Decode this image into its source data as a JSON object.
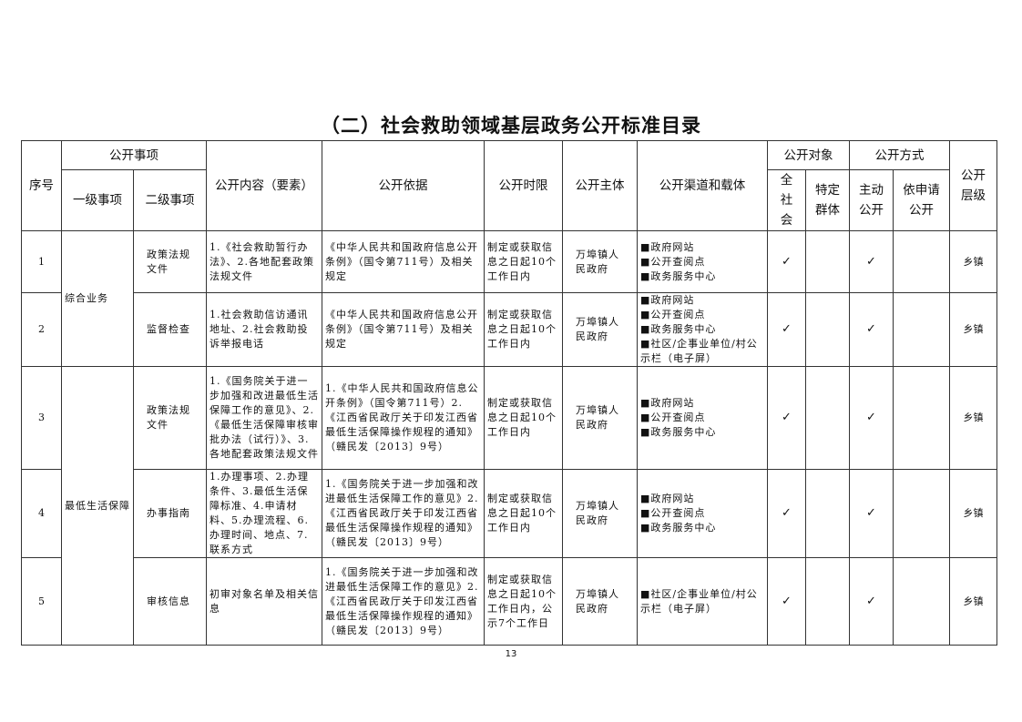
{
  "title": "（二）社会救助领域基层政务公开标准目录",
  "headers": {
    "seq": "序号",
    "matter": "公开事项",
    "level1": "一级事项",
    "level2": "二级事项",
    "content": "公开内容（要素）",
    "basis": "公开依据",
    "time": "公开时限",
    "subject": "公开主体",
    "channel": "公开渠道和载体",
    "target": "公开对象",
    "target_all": "全社会",
    "target_specific": "特定群体",
    "method": "公开方式",
    "method_active": "主动公开",
    "method_request": "依申请公开",
    "level": "公开层级"
  },
  "check_mark": "✓",
  "groups": [
    "综合业务",
    "最低生活保障"
  ],
  "rows": [
    {
      "seq": "1",
      "level2": "政策法规文件",
      "content": "1.《社会救助暂行办法》、2.各地配套政策法规文件",
      "basis": "《中华人民共和国政府信息公开条例》（国令第711号）及相关规定",
      "time": "制定或获取信息之日起10个工作日内",
      "subject": "万埠镇人民政府",
      "channels": [
        "■政府网站",
        "■公开查阅点",
        "■政务服务中心"
      ],
      "level": "乡镇"
    },
    {
      "seq": "2",
      "level2": "监督检查",
      "content": "1.社会救助信访通讯地址、2.社会救助投诉举报电话",
      "basis": "《中华人民共和国政府信息公开条例》（国令第711号）及相关规定",
      "time": "制定或获取信息之日起10个工作日内",
      "subject": "万埠镇人民政府",
      "channels": [
        "■政府网站",
        "■公开查阅点",
        "■政务服务中心",
        "■社区/企事业单位/村公示栏（电子屏）"
      ],
      "level": "乡镇"
    },
    {
      "seq": "3",
      "level2": "政策法规文件",
      "content": "1.《国务院关于进一步加强和改进最低生活保障工作的意见》、2.《最低生活保障审核审批办法（试行）》、3.各地配套政策法规文件",
      "basis": "1.《中华人民共和国政府信息公开条例》（国令第711号）2.《江西省民政厅关于印发江西省最低生活保障操作规程的通知》（赣民发〔2013〕9号）",
      "time": "制定或获取信息之日起10个工作日内",
      "subject": "万埠镇人民政府",
      "channels": [
        "■政府网站",
        "■公开查阅点",
        "■政务服务中心"
      ],
      "level": "乡镇"
    },
    {
      "seq": "4",
      "level2": "办事指南",
      "content": "1.办理事项、2.办理条件、3.最低生活保障标准、4.申请材料、5.办理流程、6.办理时间、地点、7.联系方式",
      "basis": "1.《国务院关于进一步加强和改进最低生活保障工作的意见》2.《江西省民政厅关于印发江西省最低生活保障操作规程的通知》（赣民发〔2013〕9号）",
      "time": "制定或获取信息之日起10个工作日内",
      "subject": "万埠镇人民政府",
      "channels": [
        "■政府网站",
        "■公开查阅点",
        "■政务服务中心"
      ],
      "level": "乡镇"
    },
    {
      "seq": "5",
      "level2": "审核信息",
      "content": "初审对象名单及相关信息",
      "basis": "1.《国务院关于进一步加强和改进最低生活保障工作的意见》2.《江西省民政厅关于印发江西省最低生活保障操作规程的通知》（赣民发〔2013〕9号）",
      "time": "制定或获取信息之日起10个工作日内，公示7个工作日",
      "subject": "万埠镇人民政府",
      "channels": [
        "■社区/企事业单位/村公示栏（电子屏）"
      ],
      "level": "乡镇"
    }
  ],
  "page_number": "13"
}
